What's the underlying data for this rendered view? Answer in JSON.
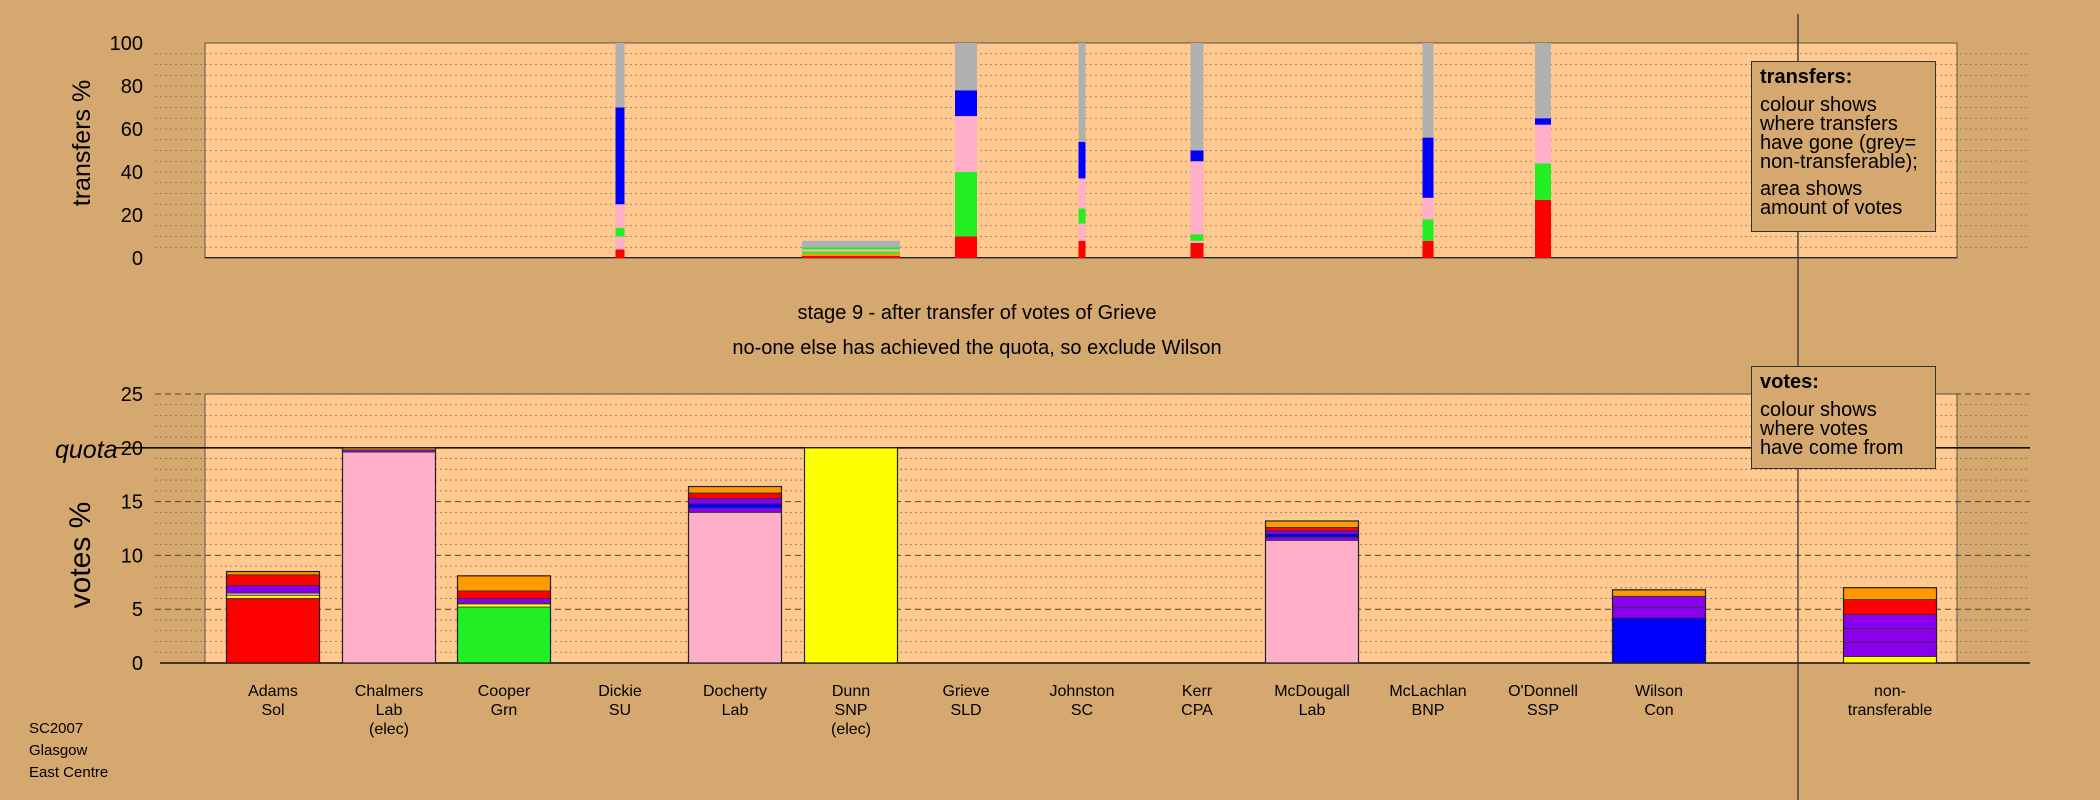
{
  "chart_data": [
    {
      "type": "bar",
      "stacked": true,
      "panel": "transfers",
      "ylabel": "transfers %",
      "ylim": [
        0,
        100
      ],
      "yticks": [
        "0",
        "20",
        "40",
        "60",
        "80",
        "100"
      ],
      "grid": true,
      "note": "bar width shows amount of votes transferred",
      "bars": [
        {
          "candidate": "Dickie",
          "segments": [
            {
              "color": "red",
              "value": 4
            },
            {
              "color": "pink",
              "value": 6
            },
            {
              "color": "green",
              "value": 4
            },
            {
              "color": "pink",
              "value": 11
            },
            {
              "color": "blue",
              "value": 45
            },
            {
              "color": "grey",
              "value": 30
            }
          ]
        },
        {
          "candidate": "Dunn",
          "segments": [
            {
              "color": "red",
              "value": 1
            },
            {
              "color": "orange",
              "value": 1
            },
            {
              "color": "green",
              "value": 1
            },
            {
              "color": "pink",
              "value": 1
            },
            {
              "color": "green",
              "value": 1
            },
            {
              "color": "grey",
              "value": 3
            }
          ]
        },
        {
          "candidate": "Grieve",
          "segments": [
            {
              "color": "red",
              "value": 10
            },
            {
              "color": "green",
              "value": 30
            },
            {
              "color": "pink",
              "value": 26
            },
            {
              "color": "blue",
              "value": 12
            },
            {
              "color": "grey",
              "value": 22
            }
          ]
        },
        {
          "candidate": "Johnston",
          "segments": [
            {
              "color": "red",
              "value": 8
            },
            {
              "color": "pink",
              "value": 8
            },
            {
              "color": "green",
              "value": 7
            },
            {
              "color": "pink",
              "value": 14
            },
            {
              "color": "blue",
              "value": 17
            },
            {
              "color": "grey",
              "value": 46
            }
          ]
        },
        {
          "candidate": "Kerr",
          "segments": [
            {
              "color": "red",
              "value": 7
            },
            {
              "color": "pink",
              "value": 1
            },
            {
              "color": "green",
              "value": 3
            },
            {
              "color": "pink",
              "value": 34
            },
            {
              "color": "blue",
              "value": 5
            },
            {
              "color": "grey",
              "value": 50
            }
          ]
        },
        {
          "candidate": "McLachlan",
          "segments": [
            {
              "color": "red",
              "value": 8
            },
            {
              "color": "green",
              "value": 10
            },
            {
              "color": "pink",
              "value": 10
            },
            {
              "color": "blue",
              "value": 28
            },
            {
              "color": "grey",
              "value": 44
            }
          ]
        },
        {
          "candidate": "O'Donnell",
          "segments": [
            {
              "color": "red",
              "value": 27
            },
            {
              "color": "green",
              "value": 17
            },
            {
              "color": "pink",
              "value": 18
            },
            {
              "color": "blue",
              "value": 3
            },
            {
              "color": "grey",
              "value": 35
            }
          ]
        }
      ]
    },
    {
      "type": "bar",
      "stacked": true,
      "panel": "votes",
      "ylabel": "votes %",
      "ylim": [
        0,
        25
      ],
      "yticks": [
        "0",
        "5",
        "10",
        "15",
        "20",
        "25"
      ],
      "quota": 20,
      "quota_label": "quota",
      "grid": true,
      "categories": [
        {
          "name": "Adams",
          "party": "Sol",
          "note": ""
        },
        {
          "name": "Chalmers",
          "party": "Lab",
          "note": "(elec)"
        },
        {
          "name": "Cooper",
          "party": "Grn",
          "note": ""
        },
        {
          "name": "Dickie",
          "party": "SU",
          "note": ""
        },
        {
          "name": "Docherty",
          "party": "Lab",
          "note": ""
        },
        {
          "name": "Dunn",
          "party": "SNP",
          "note": "(elec)"
        },
        {
          "name": "Grieve",
          "party": "SLD",
          "note": ""
        },
        {
          "name": "Johnston",
          "party": "SC",
          "note": ""
        },
        {
          "name": "Kerr",
          "party": "CPA",
          "note": ""
        },
        {
          "name": "McDougall",
          "party": "Lab",
          "note": ""
        },
        {
          "name": "McLachlan",
          "party": "BNP",
          "note": ""
        },
        {
          "name": "O'Donnell",
          "party": "SSP",
          "note": ""
        },
        {
          "name": "Wilson",
          "party": "Con",
          "note": ""
        },
        {
          "name": "",
          "party": "",
          "note": ""
        },
        {
          "name": "non-",
          "party": "transferable",
          "note": ""
        }
      ],
      "bars": [
        {
          "candidate": "Adams",
          "segments": [
            {
              "color": "red",
              "value": 6.0
            },
            {
              "color": "yellow",
              "value": 0.3
            },
            {
              "color": "pink",
              "value": 0.2
            },
            {
              "color": "purple",
              "value": 0.7
            },
            {
              "color": "red",
              "value": 1.0
            },
            {
              "color": "orange",
              "value": 0.3
            }
          ]
        },
        {
          "candidate": "Chalmers",
          "segments": [
            {
              "color": "pink",
              "value": 19.6
            },
            {
              "color": "purple",
              "value": 0.2
            },
            {
              "color": "orange",
              "value": 0.2
            }
          ]
        },
        {
          "candidate": "Cooper",
          "segments": [
            {
              "color": "green",
              "value": 5.2
            },
            {
              "color": "yellow",
              "value": 0.3
            },
            {
              "color": "purple",
              "value": 0.5
            },
            {
              "color": "red",
              "value": 0.7
            },
            {
              "color": "orange",
              "value": 1.4
            }
          ]
        },
        {
          "candidate": "Dickie",
          "segments": []
        },
        {
          "candidate": "Docherty",
          "segments": [
            {
              "color": "pink",
              "value": 14.0
            },
            {
              "color": "purple",
              "value": 0.4
            },
            {
              "color": "blue",
              "value": 0.4
            },
            {
              "color": "purple",
              "value": 0.5
            },
            {
              "color": "red",
              "value": 0.5
            },
            {
              "color": "orange",
              "value": 0.6
            }
          ]
        },
        {
          "candidate": "Dunn",
          "segments": [
            {
              "color": "yellow",
              "value": 20.0
            }
          ]
        },
        {
          "candidate": "Grieve",
          "segments": []
        },
        {
          "candidate": "Johnston",
          "segments": []
        },
        {
          "candidate": "Kerr",
          "segments": []
        },
        {
          "candidate": "McDougall",
          "segments": [
            {
              "color": "pink",
              "value": 11.4
            },
            {
              "color": "purple",
              "value": 0.3
            },
            {
              "color": "blue",
              "value": 0.3
            },
            {
              "color": "purple",
              "value": 0.3
            },
            {
              "color": "red",
              "value": 0.3
            },
            {
              "color": "orange",
              "value": 0.6
            }
          ]
        },
        {
          "candidate": "McLachlan",
          "segments": []
        },
        {
          "candidate": "O'Donnell",
          "segments": []
        },
        {
          "candidate": "Wilson",
          "segments": [
            {
              "color": "blue",
              "value": 4.2
            },
            {
              "color": "purple",
              "value": 1.0
            },
            {
              "color": "purple",
              "value": 1.0
            },
            {
              "color": "orange",
              "value": 0.6
            }
          ]
        },
        {
          "candidate": "non-transferable",
          "segments": [
            {
              "color": "yellow",
              "value": 0.6
            },
            {
              "color": "purple",
              "value": 1.3
            },
            {
              "color": "purple",
              "value": 1.3
            },
            {
              "color": "purple",
              "value": 1.3
            },
            {
              "color": "red",
              "value": 1.4
            },
            {
              "color": "orange",
              "value": 1.1
            }
          ]
        }
      ]
    }
  ],
  "stage_title": "stage 9 - after transfer of votes of Grieve",
  "stage_subtitle": "no-one else has achieved the quota, so exclude Wilson",
  "legend_transfers": {
    "title": "transfers:",
    "lines": [
      "colour shows",
      "where transfers",
      "have gone (grey=",
      "non-transferable);"
    ],
    "lines2": [
      "area shows",
      "amount of votes"
    ]
  },
  "legend_votes": {
    "title": "votes:",
    "lines": [
      "colour shows",
      "where votes",
      "have come from"
    ]
  },
  "footer": [
    "SC2007",
    "Glasgow",
    "East Centre"
  ],
  "colors": {
    "background": "#d4a86f",
    "panel": "#ffc990",
    "red": "#ff0000",
    "pink": "#ffb0c8",
    "green": "#22ee22",
    "blue": "#0000ff",
    "grey": "#b0b0b0",
    "yellow": "#ffff00",
    "purple": "#8800ee",
    "orange": "#ff9900"
  }
}
